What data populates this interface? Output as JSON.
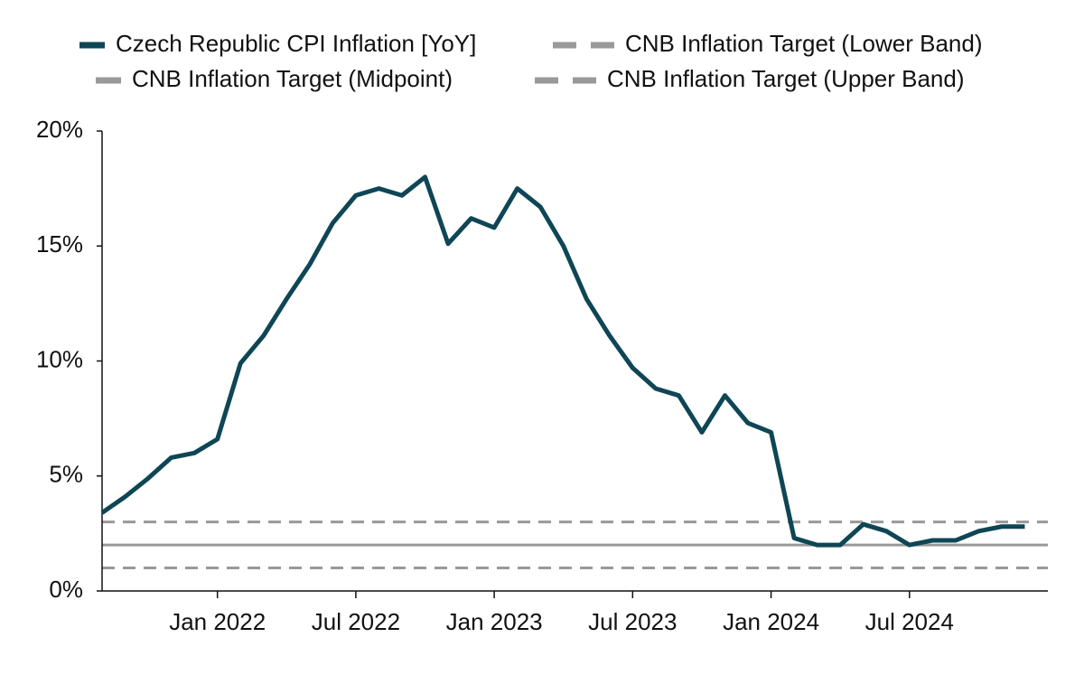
{
  "chart_data": {
    "type": "line",
    "x": [
      "2021-08",
      "2021-09",
      "2021-10",
      "2021-11",
      "2021-12",
      "2022-01",
      "2022-02",
      "2022-03",
      "2022-04",
      "2022-05",
      "2022-06",
      "2022-07",
      "2022-08",
      "2022-09",
      "2022-10",
      "2022-11",
      "2022-12",
      "2023-01",
      "2023-02",
      "2023-03",
      "2023-04",
      "2023-05",
      "2023-06",
      "2023-07",
      "2023-08",
      "2023-09",
      "2023-10",
      "2023-11",
      "2023-12",
      "2024-01",
      "2024-02",
      "2024-03",
      "2024-04",
      "2024-05",
      "2024-06",
      "2024-07",
      "2024-08",
      "2024-09",
      "2024-10",
      "2024-11",
      "2024-12"
    ],
    "series": [
      {
        "name": "Czech Republic CPI Inflation [YoY]",
        "color": "#0e4655",
        "values": [
          3.4,
          4.1,
          4.9,
          5.8,
          6.0,
          6.6,
          9.9,
          11.1,
          12.7,
          14.2,
          16.0,
          17.2,
          17.5,
          17.2,
          18.0,
          15.1,
          16.2,
          15.8,
          17.5,
          16.7,
          15.0,
          12.7,
          11.1,
          9.7,
          8.8,
          8.5,
          6.9,
          8.5,
          7.3,
          6.9,
          2.3,
          2.0,
          2.0,
          2.9,
          2.6,
          2.0,
          2.2,
          2.2,
          2.6,
          2.8,
          2.8
        ]
      }
    ],
    "reference_lines": [
      {
        "name": "CNB Inflation Target (Lower Band)",
        "value": 1,
        "color": "#999999",
        "dashed": true
      },
      {
        "name": "CNB Inflation Target (Midpoint)",
        "value": 2,
        "color": "#999999",
        "dashed": false
      },
      {
        "name": "CNB Inflation Target (Upper Band)",
        "value": 3,
        "color": "#999999",
        "dashed": true
      }
    ],
    "xlim": [
      "2021-08",
      "2025-01"
    ],
    "xticks": [
      {
        "value": "2022-01",
        "label": "Jan 2022"
      },
      {
        "value": "2022-07",
        "label": "Jul 2022"
      },
      {
        "value": "2023-01",
        "label": "Jan 2023"
      },
      {
        "value": "2023-07",
        "label": "Jul 2023"
      },
      {
        "value": "2024-01",
        "label": "Jan 2024"
      },
      {
        "value": "2024-07",
        "label": "Jul 2024"
      }
    ],
    "ylim": [
      0,
      20
    ],
    "yticks": [
      {
        "value": 0,
        "label": "0%"
      },
      {
        "value": 5,
        "label": "5%"
      },
      {
        "value": 10,
        "label": "10%"
      },
      {
        "value": 15,
        "label": "15%"
      },
      {
        "value": 20,
        "label": "20%"
      }
    ],
    "legend": "top"
  }
}
